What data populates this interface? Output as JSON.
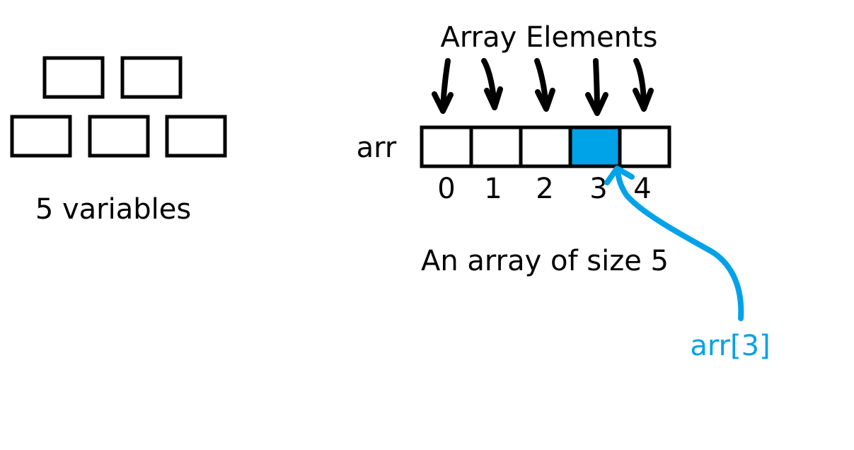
{
  "variables": {
    "count": 5,
    "caption": "5 variables"
  },
  "array": {
    "title": "Array Elements",
    "name": "arr",
    "indices": [
      "0",
      "1",
      "2",
      "3",
      "4"
    ],
    "highlighted_index": 3,
    "caption": "An array of size 5",
    "access_label": "arr[3]"
  },
  "colors": {
    "stroke": "#000000",
    "highlight": "#00a2e8",
    "background": "#ffffff"
  }
}
